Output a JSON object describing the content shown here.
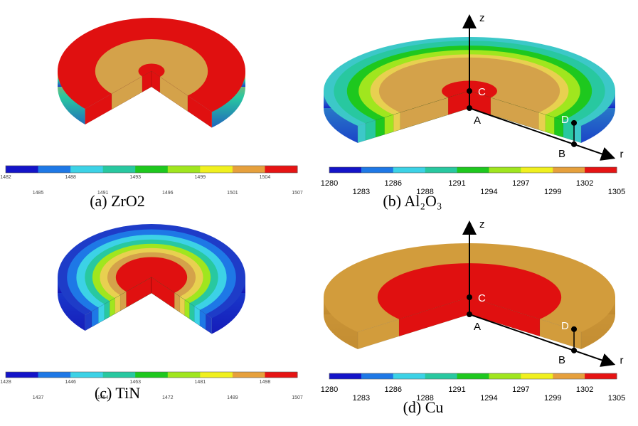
{
  "panels": [
    {
      "caption": "(a) ZrO2",
      "colorbar": [
        1482,
        1485,
        1488,
        1491,
        1493,
        1496,
        1499,
        1501,
        1504,
        1507
      ]
    },
    {
      "caption": "(b) Al₂O₃",
      "colorbar": [
        1280,
        1283,
        1286,
        1288,
        1291,
        1294,
        1297,
        1299,
        1302,
        1305
      ],
      "labels": {
        "z": "z",
        "r": "r",
        "A": "A",
        "B": "B",
        "C": "C",
        "D": "D"
      }
    },
    {
      "caption": "(c) TiN",
      "colorbar": [
        1428,
        1437,
        1446,
        1454,
        1463,
        1472,
        1481,
        1489,
        1498,
        1507
      ]
    },
    {
      "caption": "(d) Cu",
      "colorbar": [
        1280,
        1283,
        1286,
        1288,
        1291,
        1294,
        1297,
        1299,
        1302,
        1305
      ],
      "labels": {
        "z": "z",
        "r": "r",
        "A": "A",
        "B": "B",
        "C": "C",
        "D": "D"
      }
    }
  ]
}
